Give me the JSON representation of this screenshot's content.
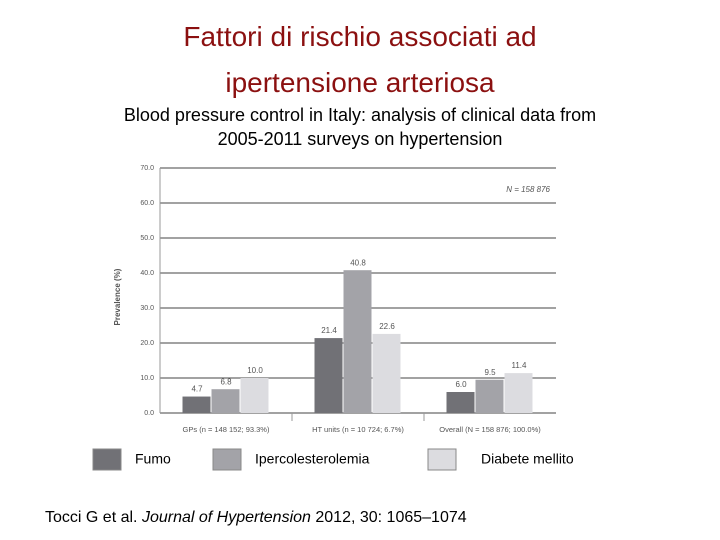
{
  "chart_data": {
    "type": "bar",
    "title": "Fattori di rischio associati ad ipertensione arteriosa",
    "subtitle": "Blood pressure control in Italy: analysis of clinical data from 2005-2011 surveys on hypertension",
    "y_label": "Prevalence (%)",
    "annotation": "N = 158 876",
    "categories": [
      "GPs (n = 148 152; 93.3%)",
      "HT units (n = 10 724; 6.7%)",
      "Overall (N = 158 876; 100.0%)"
    ],
    "series": [
      {
        "name": "Fumo",
        "color": "#717176",
        "values": [
          4.7,
          21.4,
          6.0
        ],
        "value_labels": [
          "4.7",
          "21.4",
          "6.0"
        ]
      },
      {
        "name": "Ipercolesterolemia",
        "color": "#a3a3a8",
        "values": [
          6.8,
          40.8,
          9.5
        ],
        "value_labels": [
          "6.8",
          "40.8",
          "9.5"
        ]
      },
      {
        "name": "Diabete mellito",
        "color": "#dcdce0",
        "values": [
          10.0,
          22.6,
          11.4
        ],
        "value_labels": [
          "10.0",
          "22.6",
          "11.4"
        ]
      }
    ],
    "ylim": [
      0,
      70
    ],
    "yticks": [
      {
        "value": 0,
        "label": "0.0"
      },
      {
        "value": 10,
        "label": "10.0"
      },
      {
        "value": 20,
        "label": "20.0"
      },
      {
        "value": 30,
        "label": "30.0"
      },
      {
        "value": 40,
        "label": "40.0"
      },
      {
        "value": 50,
        "label": "50.0"
      },
      {
        "value": 60,
        "label": "60.0"
      },
      {
        "value": 70,
        "label": "70.0"
      }
    ],
    "grid": true
  },
  "citation": {
    "authors": "Tocci G et al.",
    "journal": "Journal of Hypertension",
    "details": "2012, 30: 1065–1074"
  }
}
